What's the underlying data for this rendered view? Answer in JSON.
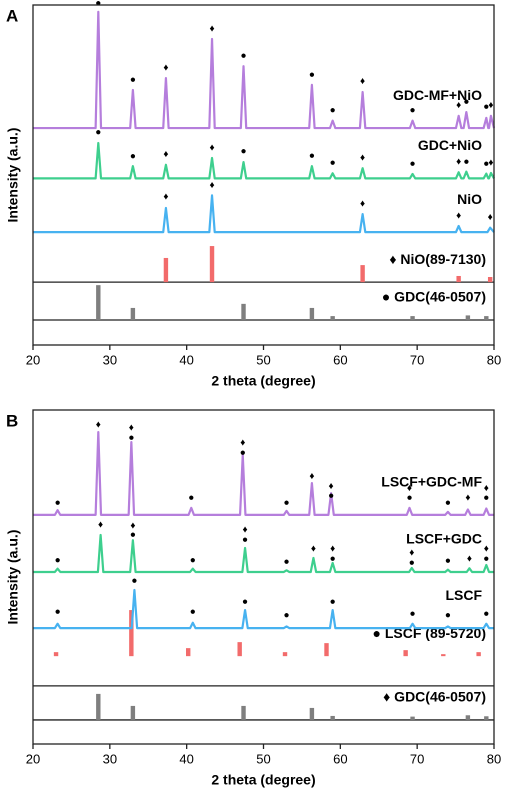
{
  "chart_data": [
    {
      "type": "line",
      "panel_label": "A",
      "xlabel": "2 theta (degree)",
      "ylabel": "Intensity (a.u.)",
      "xlim": [
        20,
        80
      ],
      "ylim": [
        0,
        100
      ],
      "xticks": [
        20,
        30,
        40,
        50,
        60,
        70,
        80
      ],
      "dividers": [
        18.5,
        7.35
      ],
      "series": [
        {
          "name": "GDC-MF+NiO",
          "color": "#b57edc",
          "x": [
            20,
            28.15,
            28.5,
            28.85,
            32.65,
            33,
            33.35,
            36.95,
            37.3,
            37.65,
            42.95,
            43.3,
            43.65,
            47.05,
            47.4,
            47.75,
            55.95,
            56.3,
            56.65,
            58.65,
            59,
            59.35,
            62.55,
            62.9,
            63.25,
            69.05,
            69.4,
            69.75,
            75.05,
            75.4,
            75.75,
            76.05,
            76.4,
            76.75,
            78.65,
            79,
            79.25,
            79.35,
            79.6,
            80
          ],
          "values": [
            63.8,
            63.8,
            98,
            63.8,
            63.8,
            75,
            63.8,
            63.8,
            78.5,
            63.8,
            63.8,
            90,
            63.8,
            63.8,
            82,
            63.8,
            63.8,
            76.5,
            63.8,
            63.8,
            66,
            63.8,
            63.8,
            74.4,
            63.8,
            63.8,
            66,
            63.8,
            63.8,
            67.4,
            63.8,
            63.8,
            68.5,
            63.8,
            63.8,
            66.8,
            63.8,
            63.8,
            67.4,
            63.8
          ],
          "markers": [
            {
              "x": 28.5,
              "y": 100.5,
              "label": "●"
            },
            {
              "x": 33,
              "y": 78,
              "label": "●"
            },
            {
              "x": 37.3,
              "y": 81.5,
              "label": "♦"
            },
            {
              "x": 43.3,
              "y": 93,
              "label": "♦"
            },
            {
              "x": 47.4,
              "y": 85,
              "label": "●"
            },
            {
              "x": 56.3,
              "y": 79.5,
              "label": "●"
            },
            {
              "x": 59,
              "y": 69,
              "label": "●"
            },
            {
              "x": 62.9,
              "y": 77.5,
              "label": "♦"
            },
            {
              "x": 69.4,
              "y": 69,
              "label": "●"
            },
            {
              "x": 75.4,
              "y": 70.5,
              "label": "♦"
            },
            {
              "x": 76.4,
              "y": 71.5,
              "label": "●"
            },
            {
              "x": 79,
              "y": 70,
              "label": "●"
            },
            {
              "x": 79.6,
              "y": 70.5,
              "label": "♦"
            }
          ]
        },
        {
          "name": "GDC+NiO",
          "color": "#3ecf8e",
          "x": [
            20,
            28.15,
            28.5,
            28.85,
            32.65,
            33,
            33.35,
            36.95,
            37.3,
            37.65,
            42.95,
            43.3,
            43.65,
            47.05,
            47.4,
            47.75,
            55.95,
            56.3,
            56.65,
            58.65,
            59,
            59.35,
            62.55,
            62.9,
            63.25,
            69.05,
            69.4,
            69.75,
            75.05,
            75.4,
            75.75,
            76.05,
            76.4,
            76.75,
            78.65,
            79,
            79.25,
            79.35,
            79.6,
            80
          ],
          "values": [
            49,
            49,
            59.4,
            49,
            49,
            52.6,
            49,
            49,
            53,
            49,
            49,
            55,
            49,
            49,
            53.8,
            49,
            49,
            52.6,
            49,
            49,
            50.5,
            49,
            49,
            52,
            49,
            49,
            50.3,
            49,
            49,
            50.8,
            49,
            49,
            51,
            49,
            49,
            50.4,
            49,
            49,
            50.6,
            49
          ],
          "markers": [
            {
              "x": 28.5,
              "y": 62.5,
              "label": "●"
            },
            {
              "x": 33,
              "y": 55.5,
              "label": "●"
            },
            {
              "x": 37.3,
              "y": 56,
              "label": "♦"
            },
            {
              "x": 43.3,
              "y": 58,
              "label": "♦"
            },
            {
              "x": 47.4,
              "y": 57,
              "label": "●"
            },
            {
              "x": 56.3,
              "y": 55.7,
              "label": "●"
            },
            {
              "x": 59,
              "y": 53.5,
              "label": "●"
            },
            {
              "x": 62.9,
              "y": 55,
              "label": "♦"
            },
            {
              "x": 69.4,
              "y": 53.3,
              "label": "●"
            },
            {
              "x": 75.4,
              "y": 53.8,
              "label": "♦"
            },
            {
              "x": 76.4,
              "y": 53.8,
              "label": "●"
            },
            {
              "x": 79,
              "y": 53.3,
              "label": "●"
            },
            {
              "x": 79.6,
              "y": 53.6,
              "label": "♦"
            }
          ]
        },
        {
          "name": "NiO",
          "color": "#47b2f0",
          "x": [
            20,
            36.95,
            37.3,
            37.65,
            42.95,
            43.3,
            43.65,
            62.55,
            62.9,
            63.25,
            75.05,
            75.4,
            75.75,
            79.15,
            79.5,
            80
          ],
          "values": [
            33.2,
            33.2,
            40.3,
            33.2,
            33.2,
            44,
            33.2,
            33.2,
            38.5,
            33.2,
            33.2,
            35,
            33.2,
            33.2,
            34.5,
            33.2
          ],
          "markers": [
            {
              "x": 37.3,
              "y": 43.5,
              "label": "♦"
            },
            {
              "x": 43.3,
              "y": 47,
              "label": "♦"
            },
            {
              "x": 62.9,
              "y": 41.5,
              "label": "♦"
            },
            {
              "x": 75.4,
              "y": 38,
              "label": "♦"
            },
            {
              "x": 79.5,
              "y": 37.5,
              "label": "♦"
            }
          ]
        }
      ],
      "references": [
        {
          "name": "♦ NiO(89-7130)",
          "color": "#f26b6b",
          "baseline": 18.5,
          "x": [
            37.3,
            43.3,
            62.9,
            75.4,
            79.5
          ],
          "values": [
            25.6,
            29.1,
            23.5,
            20.3,
            20
          ]
        },
        {
          "name": "● GDC(46-0507)",
          "color": "#7f7f7f",
          "baseline": 7.35,
          "x": [
            28.5,
            33,
            47.4,
            56.3,
            59,
            69.4,
            76.6,
            79
          ],
          "values": [
            17.6,
            10.9,
            12.1,
            10.9,
            8.5,
            8.5,
            8.7,
            8.5
          ]
        }
      ]
    },
    {
      "type": "line",
      "panel_label": "B",
      "xlabel": "2 theta (degree)",
      "ylabel": "Intensity (a.u.)",
      "xlim": [
        20,
        80
      ],
      "ylim": [
        0,
        100
      ],
      "xticks": [
        20,
        30,
        40,
        50,
        60,
        70,
        80
      ],
      "dividers": [
        17.4,
        7.2
      ],
      "series": [
        {
          "name": "LSCF+GDC-MF",
          "color": "#b57edc",
          "x": [
            20,
            22.85,
            23.2,
            23.55,
            28.15,
            28.5,
            28.85,
            32.45,
            32.8,
            33.15,
            40.25,
            40.6,
            40.95,
            46.95,
            47.3,
            47.65,
            52.65,
            53,
            53.35,
            55.95,
            56.3,
            56.65,
            58.45,
            58.8,
            59.15,
            68.65,
            69,
            69.35,
            73.65,
            74,
            74.35,
            76.25,
            76.6,
            76.95,
            78.65,
            79,
            79.35,
            80
          ],
          "values": [
            68.6,
            68.6,
            70,
            68.6,
            68.6,
            93.4,
            68.6,
            68.6,
            90.4,
            68.6,
            68.6,
            70.7,
            68.6,
            68.6,
            86.5,
            68.6,
            68.6,
            69.8,
            68.6,
            68.6,
            78.1,
            68.6,
            68.6,
            75.1,
            68.6,
            68.6,
            70.7,
            68.6,
            68.6,
            69.5,
            68.6,
            68.6,
            70.2,
            68.6,
            68.6,
            70.5,
            68.6,
            68.6
          ],
          "markers": [
            {
              "x": 23.2,
              "y": 72.2,
              "label": "●"
            },
            {
              "x": 28.5,
              "y": 95.5,
              "label": "♦"
            },
            {
              "x": 32.8,
              "y": 94.6,
              "label": "♦"
            },
            {
              "x": 32.8,
              "y": 91.6,
              "label": "●"
            },
            {
              "x": 40.6,
              "y": 73.7,
              "label": "●"
            },
            {
              "x": 47.3,
              "y": 90.1,
              "label": "♦"
            },
            {
              "x": 47.3,
              "y": 87.1,
              "label": "●"
            },
            {
              "x": 53,
              "y": 72.2,
              "label": "●"
            },
            {
              "x": 56.3,
              "y": 80.2,
              "label": "♦"
            },
            {
              "x": 58.8,
              "y": 77.2,
              "label": "♦"
            },
            {
              "x": 58.8,
              "y": 74.3,
              "label": "●"
            },
            {
              "x": 69,
              "y": 76.6,
              "label": "♦"
            },
            {
              "x": 69,
              "y": 73.7,
              "label": "●"
            },
            {
              "x": 74,
              "y": 72.2,
              "label": "●"
            },
            {
              "x": 76.6,
              "y": 73.7,
              "label": "♦"
            },
            {
              "x": 79,
              "y": 76.6,
              "label": "♦"
            },
            {
              "x": 79,
              "y": 73.7,
              "label": "●"
            }
          ]
        },
        {
          "name": "LSCF+GDC",
          "color": "#3ecf8e",
          "x": [
            20,
            22.85,
            23.2,
            23.55,
            28.45,
            28.8,
            29.15,
            32.65,
            33,
            33.35,
            40.45,
            40.8,
            41.15,
            47.25,
            47.6,
            47.95,
            52.65,
            53,
            53.35,
            56.15,
            56.5,
            56.85,
            58.65,
            59,
            59.35,
            68.95,
            69.3,
            69.65,
            73.65,
            74,
            74.35,
            76.45,
            76.8,
            77.15,
            78.65,
            79,
            79.35,
            80
          ],
          "values": [
            51.5,
            51.5,
            52.5,
            51.5,
            51.5,
            62.6,
            51.5,
            51.5,
            61,
            51.5,
            51.5,
            52.5,
            51.5,
            51.5,
            58.7,
            51.5,
            51.5,
            52,
            51.5,
            51.5,
            55.7,
            51.5,
            51.5,
            54.2,
            51.5,
            51.5,
            52.7,
            51.5,
            51.5,
            52.2,
            51.5,
            51.5,
            52.6,
            51.5,
            51.5,
            53.6,
            51.5,
            51.5
          ],
          "markers": [
            {
              "x": 23.2,
              "y": 55,
              "label": "●"
            },
            {
              "x": 28.8,
              "y": 65.6,
              "label": "♦"
            },
            {
              "x": 33,
              "y": 65.3,
              "label": "♦"
            },
            {
              "x": 33,
              "y": 62.6,
              "label": "●"
            },
            {
              "x": 40.8,
              "y": 55,
              "label": "●"
            },
            {
              "x": 47.6,
              "y": 64.1,
              "label": "♦"
            },
            {
              "x": 47.6,
              "y": 61.1,
              "label": "●"
            },
            {
              "x": 53,
              "y": 54.5,
              "label": "●"
            },
            {
              "x": 56.5,
              "y": 58.4,
              "label": "♦"
            },
            {
              "x": 59,
              "y": 58.4,
              "label": "♦"
            },
            {
              "x": 59,
              "y": 55.4,
              "label": "●"
            },
            {
              "x": 69.3,
              "y": 57.2,
              "label": "♦"
            },
            {
              "x": 69.3,
              "y": 54.2,
              "label": "●"
            },
            {
              "x": 74,
              "y": 54.8,
              "label": "●"
            },
            {
              "x": 76.8,
              "y": 55.5,
              "label": "♦"
            },
            {
              "x": 79,
              "y": 58.4,
              "label": "♦"
            },
            {
              "x": 79,
              "y": 55.4,
              "label": "●"
            }
          ]
        },
        {
          "name": "LSCF",
          "color": "#47b2f0",
          "x": [
            20,
            22.85,
            23.2,
            23.55,
            32.85,
            33.2,
            33.55,
            40.45,
            40.8,
            41.15,
            47.25,
            47.6,
            47.95,
            52.65,
            53,
            53.35,
            58.65,
            59,
            59.35,
            69.05,
            69.4,
            69.75,
            73.65,
            74,
            74.35,
            78.65,
            79,
            79.35,
            80
          ],
          "values": [
            34.7,
            34.7,
            36,
            34.7,
            34.7,
            46.1,
            34.7,
            34.7,
            36.3,
            34.7,
            34.7,
            40.1,
            34.7,
            34.7,
            35.2,
            34.7,
            34.7,
            40.1,
            34.7,
            34.7,
            36,
            34.7,
            34.7,
            35.2,
            34.7,
            34.7,
            36,
            34.7,
            34.7
          ],
          "markers": [
            {
              "x": 23.2,
              "y": 39.5,
              "label": "●"
            },
            {
              "x": 33.2,
              "y": 48.8,
              "label": "●"
            },
            {
              "x": 40.8,
              "y": 39.5,
              "label": "●"
            },
            {
              "x": 47.6,
              "y": 42.5,
              "label": "●"
            },
            {
              "x": 53,
              "y": 38.5,
              "label": "●"
            },
            {
              "x": 59,
              "y": 42.5,
              "label": "●"
            },
            {
              "x": 69.4,
              "y": 39,
              "label": "●"
            },
            {
              "x": 74,
              "y": 38.5,
              "label": "●"
            },
            {
              "x": 79,
              "y": 39,
              "label": "●"
            }
          ]
        }
      ],
      "references": [
        {
          "name": "● LSCF (89-5720)",
          "color": "#f26b6b",
          "baseline": 26.3,
          "x": [
            23,
            32.8,
            40.2,
            46.9,
            52.8,
            58.2,
            68.5,
            73.4,
            78
          ],
          "values": [
            27.5,
            40.1,
            28.7,
            30.5,
            27.5,
            30.2,
            28.1,
            26.9,
            27.5
          ]
        },
        {
          "name": "♦ GDC(46-0507)",
          "color": "#7f7f7f",
          "baseline": 7.2,
          "x": [
            28.5,
            33,
            47.4,
            56.3,
            59,
            69.4,
            76.6,
            79
          ],
          "values": [
            15,
            11.4,
            11.4,
            10.8,
            8.4,
            8.2,
            8.6,
            8.3
          ]
        }
      ]
    }
  ]
}
